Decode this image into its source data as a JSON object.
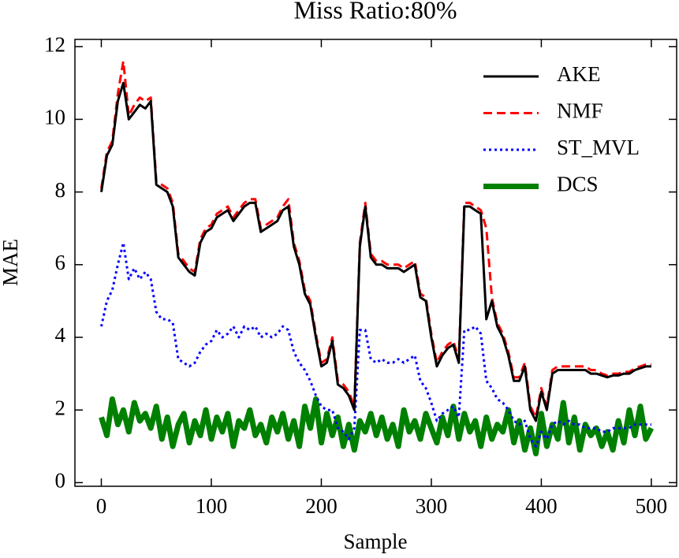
{
  "chart_data": {
    "type": "line",
    "title": "Miss Ratio:80%",
    "x_label": "Sample",
    "y_label": "MAE",
    "x": [
      0,
      5,
      10,
      15,
      20,
      25,
      30,
      35,
      40,
      45,
      50,
      55,
      60,
      65,
      70,
      75,
      80,
      85,
      90,
      95,
      100,
      105,
      110,
      115,
      120,
      125,
      130,
      135,
      140,
      145,
      150,
      155,
      160,
      165,
      170,
      175,
      180,
      185,
      190,
      195,
      200,
      205,
      210,
      215,
      220,
      225,
      230,
      235,
      240,
      245,
      250,
      255,
      260,
      265,
      270,
      275,
      280,
      285,
      290,
      295,
      300,
      305,
      310,
      315,
      320,
      325,
      330,
      335,
      340,
      345,
      350,
      355,
      360,
      365,
      370,
      375,
      380,
      385,
      390,
      395,
      400,
      405,
      410,
      415,
      420,
      425,
      430,
      435,
      440,
      445,
      450,
      455,
      460,
      465,
      470,
      475,
      480,
      485,
      490,
      495,
      500
    ],
    "series": [
      {
        "name": "AKE",
        "color": "#000000",
        "linestyle": "solid",
        "values": [
          8.0,
          9.0,
          9.3,
          10.5,
          11.0,
          10.0,
          10.2,
          10.4,
          10.3,
          10.5,
          8.2,
          8.1,
          8.0,
          7.6,
          6.2,
          6.0,
          5.8,
          5.7,
          6.6,
          6.9,
          7.0,
          7.3,
          7.4,
          7.5,
          7.2,
          7.4,
          7.6,
          7.7,
          7.7,
          6.9,
          7.0,
          7.1,
          7.2,
          7.5,
          7.6,
          6.5,
          6.0,
          5.2,
          4.9,
          4.0,
          3.2,
          3.3,
          3.9,
          2.7,
          2.6,
          2.4,
          2.0,
          6.5,
          7.6,
          6.2,
          6.0,
          6.0,
          5.9,
          5.9,
          5.9,
          5.8,
          5.9,
          6.0,
          5.1,
          5.0,
          4.0,
          3.2,
          3.5,
          3.7,
          3.8,
          3.3,
          7.6,
          7.6,
          7.5,
          7.4,
          4.5,
          5.0,
          4.3,
          4.0,
          3.5,
          2.8,
          2.8,
          3.2,
          2.0,
          1.7,
          2.5,
          2.0,
          3.0,
          3.1,
          3.1,
          3.1,
          3.1,
          3.1,
          3.1,
          3.0,
          3.0,
          2.95,
          2.9,
          2.95,
          2.95,
          3.0,
          3.0,
          3.1,
          3.15,
          3.2,
          3.2
        ]
      },
      {
        "name": "NMF",
        "color": "#ff0000",
        "linestyle": "dashed",
        "values": [
          8.1,
          9.1,
          9.4,
          10.7,
          11.6,
          10.1,
          10.4,
          10.6,
          10.5,
          10.6,
          8.3,
          8.2,
          8.1,
          7.7,
          6.3,
          6.1,
          5.9,
          5.8,
          6.7,
          7.0,
          7.1,
          7.4,
          7.5,
          7.6,
          7.3,
          7.5,
          7.7,
          7.8,
          7.8,
          7.0,
          7.1,
          7.2,
          7.3,
          7.6,
          7.8,
          6.6,
          6.1,
          5.3,
          5.0,
          4.1,
          3.3,
          3.4,
          4.0,
          2.8,
          2.7,
          2.5,
          2.1,
          6.6,
          7.7,
          6.3,
          6.1,
          6.1,
          6.0,
          6.0,
          6.0,
          5.9,
          6.0,
          6.1,
          5.2,
          5.1,
          4.1,
          3.3,
          3.6,
          3.8,
          3.9,
          3.4,
          7.7,
          7.7,
          7.6,
          7.5,
          7.0,
          5.1,
          4.4,
          4.1,
          3.6,
          2.9,
          2.9,
          3.3,
          2.1,
          1.8,
          2.6,
          2.1,
          3.1,
          3.2,
          3.2,
          3.2,
          3.2,
          3.2,
          3.2,
          3.1,
          3.1,
          3.0,
          2.95,
          3.0,
          3.0,
          3.05,
          3.05,
          3.15,
          3.2,
          3.25,
          3.25
        ]
      },
      {
        "name": "ST_MVL",
        "color": "#0000ff",
        "linestyle": "dotted",
        "values": [
          4.3,
          5.0,
          5.3,
          6.0,
          6.6,
          5.6,
          5.9,
          5.6,
          5.8,
          5.6,
          4.7,
          4.5,
          4.5,
          4.4,
          3.4,
          3.3,
          3.2,
          3.3,
          3.6,
          3.8,
          3.9,
          4.2,
          4.0,
          4.1,
          4.3,
          4.0,
          4.3,
          4.2,
          4.3,
          4.0,
          4.1,
          4.0,
          4.1,
          4.3,
          4.2,
          3.6,
          3.3,
          3.1,
          2.8,
          2.4,
          2.1,
          2.0,
          2.0,
          1.5,
          1.4,
          1.2,
          1.5,
          4.2,
          4.2,
          3.4,
          3.3,
          3.4,
          3.3,
          3.3,
          3.4,
          3.3,
          3.4,
          3.5,
          2.8,
          2.6,
          2.2,
          1.7,
          1.9,
          2.0,
          2.1,
          1.8,
          4.2,
          4.2,
          4.3,
          4.1,
          2.8,
          2.6,
          2.3,
          2.2,
          2.0,
          1.7,
          1.6,
          1.7,
          1.2,
          1.0,
          1.4,
          1.2,
          1.6,
          1.7,
          1.6,
          1.7,
          1.6,
          1.6,
          1.5,
          1.5,
          1.5,
          1.4,
          1.4,
          1.5,
          1.5,
          1.5,
          1.5,
          1.6,
          1.6,
          1.6,
          1.6
        ]
      },
      {
        "name": "DCS",
        "color": "#008000",
        "linestyle": "thick",
        "values": [
          1.8,
          1.3,
          2.3,
          1.6,
          2.0,
          1.4,
          2.2,
          1.7,
          1.9,
          1.5,
          2.1,
          1.2,
          1.8,
          1.0,
          1.6,
          1.9,
          1.1,
          1.7,
          1.3,
          2.0,
          1.2,
          1.8,
          1.4,
          1.9,
          1.0,
          1.7,
          1.5,
          2.0,
          1.3,
          1.6,
          1.1,
          1.8,
          1.4,
          1.9,
          1.2,
          1.7,
          1.0,
          2.1,
          1.5,
          2.3,
          1.1,
          1.9,
          1.3,
          1.8,
          1.0,
          1.6,
          0.9,
          1.7,
          1.4,
          1.9,
          1.3,
          1.8,
          1.2,
          1.6,
          1.0,
          2.0,
          1.4,
          1.7,
          1.2,
          1.9,
          1.5,
          1.1,
          1.8,
          1.3,
          2.1,
          1.2,
          1.9,
          1.4,
          1.7,
          1.0,
          1.8,
          1.2,
          1.6,
          1.4,
          2.0,
          1.1,
          1.7,
          0.9,
          1.5,
          0.8,
          1.9,
          1.0,
          1.6,
          1.2,
          2.2,
          1.1,
          1.8,
          0.9,
          1.6,
          1.3,
          1.5,
          1.0,
          1.4,
          0.9,
          1.7,
          1.1,
          2.0,
          1.3,
          2.1,
          1.2,
          1.5
        ]
      }
    ],
    "xlim": [
      -24,
      523
    ],
    "ylim": [
      -0.1,
      12.2
    ],
    "xticks": [
      0,
      100,
      200,
      300,
      400,
      500
    ],
    "yticks": [
      0,
      2,
      4,
      6,
      8,
      10,
      12
    ],
    "grid": false,
    "legend": "upper right"
  }
}
